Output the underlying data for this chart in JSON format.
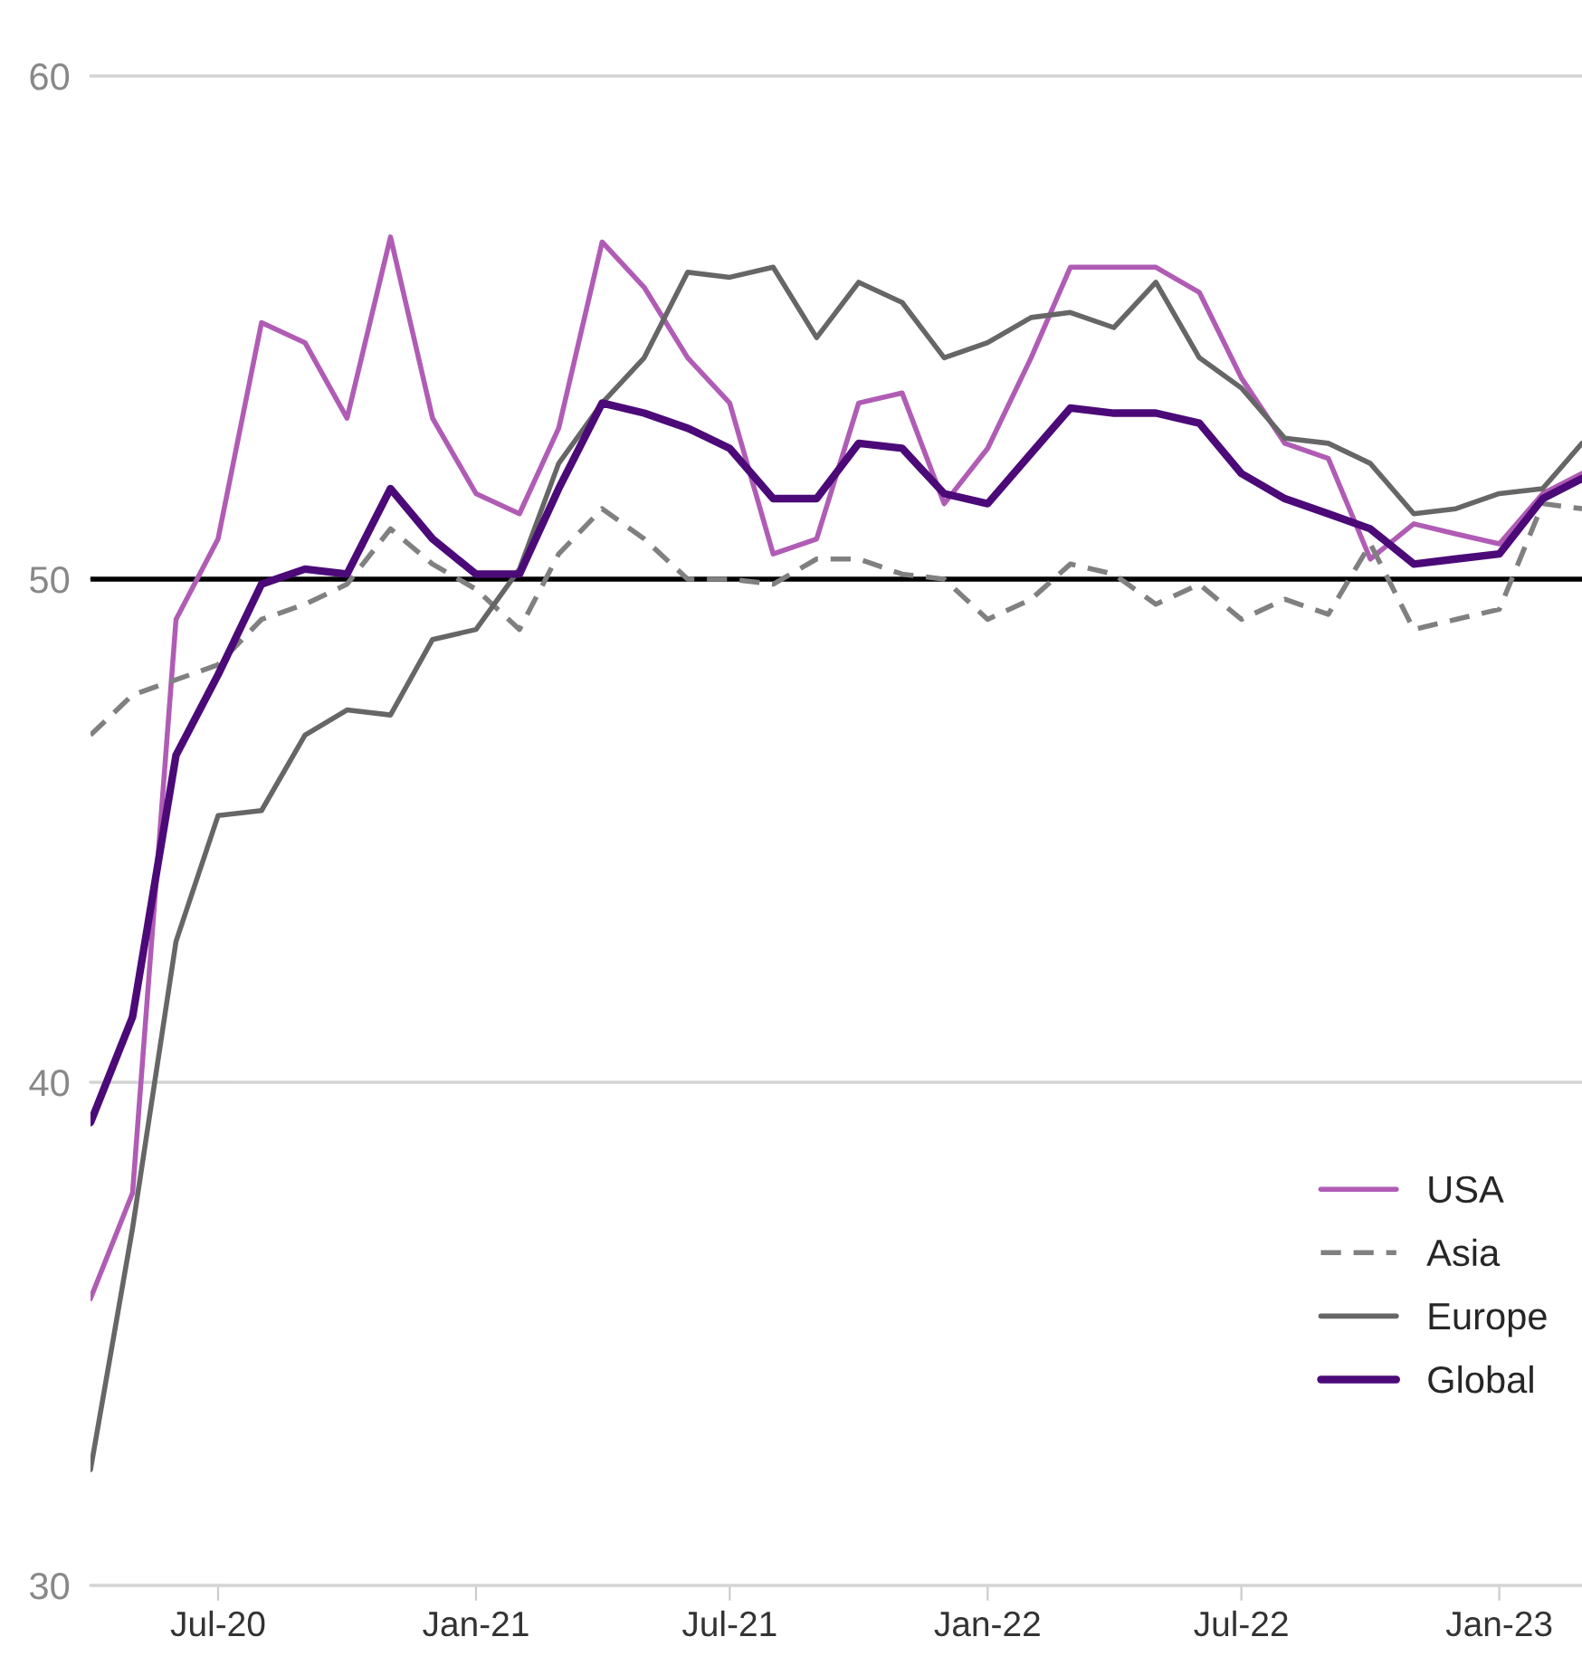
{
  "chart_data": {
    "type": "line",
    "x": [
      "2020-04",
      "2020-05",
      "2020-06",
      "2020-07",
      "2020-08",
      "2020-09",
      "2020-10",
      "2020-11",
      "2020-12",
      "2021-01",
      "2021-02",
      "2021-03",
      "2021-04",
      "2021-05",
      "2021-06",
      "2021-07",
      "2021-08",
      "2021-09",
      "2021-10",
      "2021-11",
      "2021-12",
      "2022-01",
      "2022-02",
      "2022-03",
      "2022-04",
      "2022-05",
      "2022-06",
      "2022-07",
      "2022-08",
      "2022-09",
      "2022-10",
      "2022-11",
      "2022-12",
      "2023-01",
      "2023-02",
      "2023-03"
    ],
    "series": [
      {
        "name": "USA",
        "color": "#b05cb5",
        "line_style": "solid",
        "values": [
          35.7,
          37.8,
          49.2,
          50.8,
          55.1,
          54.7,
          53.2,
          56.8,
          53.2,
          51.7,
          51.3,
          53.0,
          56.7,
          55.8,
          54.4,
          53.5,
          50.5,
          50.8,
          53.5,
          53.7,
          51.5,
          52.6,
          54.4,
          56.2,
          56.2,
          56.2,
          55.7,
          54.0,
          52.7,
          52.4,
          50.4,
          51.1,
          50.9,
          50.7,
          51.7,
          52.1
        ]
      },
      {
        "name": "Asia",
        "color": "#808080",
        "line_style": "dashed",
        "values": [
          46.9,
          47.7,
          48.0,
          48.3,
          49.2,
          49.5,
          49.9,
          51.0,
          50.3,
          49.8,
          49.0,
          50.5,
          51.4,
          50.8,
          50.0,
          50.0,
          49.9,
          50.4,
          50.4,
          50.1,
          50.0,
          49.2,
          49.6,
          50.3,
          50.1,
          49.5,
          49.9,
          49.2,
          49.6,
          49.3,
          50.7,
          49.0,
          49.2,
          49.4,
          51.5,
          51.4
        ]
      },
      {
        "name": "Europe",
        "color": "#666666",
        "line_style": "solid",
        "values": [
          32.3,
          37.1,
          42.8,
          45.3,
          45.4,
          46.9,
          47.4,
          47.3,
          48.8,
          49.0,
          50.2,
          52.3,
          53.5,
          54.4,
          56.1,
          56.0,
          56.2,
          54.8,
          55.9,
          55.5,
          54.4,
          54.7,
          55.2,
          55.3,
          55.0,
          55.9,
          54.4,
          53.8,
          52.8,
          52.7,
          52.3,
          51.3,
          51.4,
          51.7,
          51.8,
          52.7
        ]
      },
      {
        "name": "Global",
        "color": "#4b0a78",
        "line_style": "solid",
        "values": [
          39.2,
          41.3,
          46.5,
          48.1,
          49.9,
          50.2,
          50.1,
          51.8,
          50.8,
          50.1,
          50.1,
          51.8,
          53.5,
          53.3,
          53.0,
          52.6,
          51.6,
          51.6,
          52.7,
          52.6,
          51.7,
          51.5,
          52.5,
          53.4,
          53.3,
          53.3,
          53.1,
          52.1,
          51.6,
          51.3,
          51.0,
          50.3,
          50.4,
          50.5,
          51.6,
          52.0
        ]
      }
    ],
    "xlim": [
      "2020-04",
      "2023-03"
    ],
    "xticks": [
      {
        "value": "2020-07",
        "label": "Jul-20"
      },
      {
        "value": "2021-01",
        "label": "Jan-21"
      },
      {
        "value": "2021-07",
        "label": "Jul-21"
      },
      {
        "value": "2022-01",
        "label": "Jan-22"
      },
      {
        "value": "2022-07",
        "label": "Jul-22"
      },
      {
        "value": "2023-01",
        "label": "Jan-23"
      }
    ],
    "ylim": [
      30,
      60
    ],
    "yticks": [
      30,
      40,
      50,
      60
    ],
    "ref_lines": [
      {
        "axis": "y",
        "value": 50,
        "color": "#000000"
      }
    ],
    "grid": "y",
    "legend": "bottom right",
    "marker": "none"
  }
}
